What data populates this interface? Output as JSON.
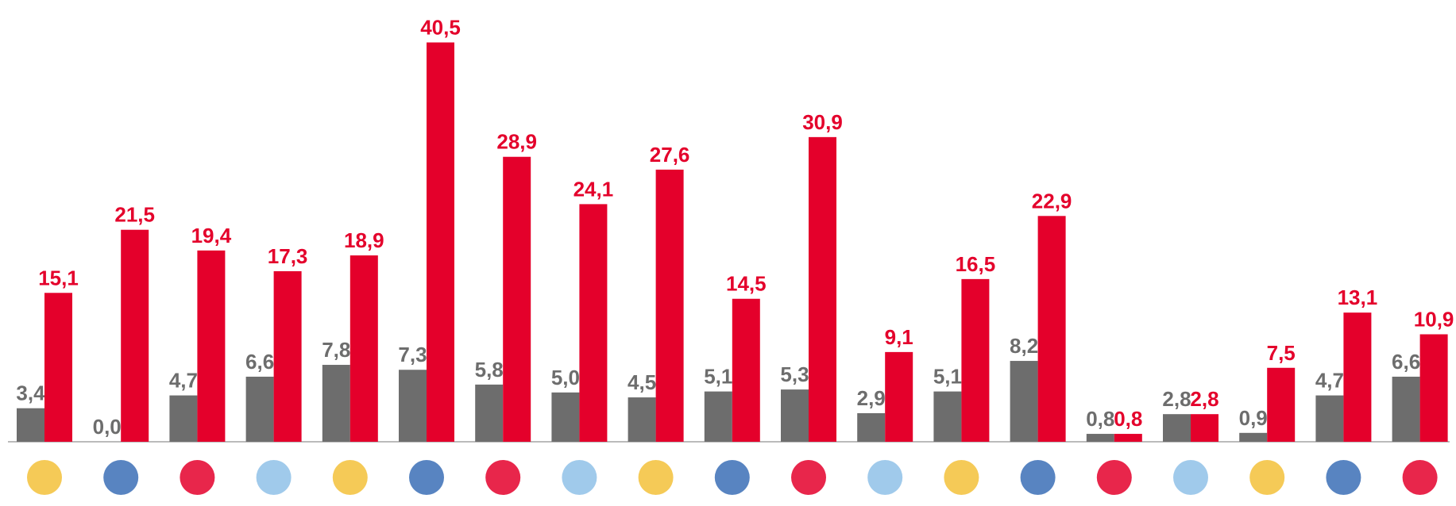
{
  "chart_data": {
    "type": "bar",
    "categories": [
      null,
      null,
      null,
      null,
      null,
      null,
      null,
      null,
      null,
      null,
      null,
      null,
      null,
      null,
      null,
      null,
      null,
      null,
      null
    ],
    "series": [
      {
        "color": "#6d6d6d",
        "values": [
          3.4,
          0.0,
          4.7,
          6.6,
          7.8,
          7.3,
          5.8,
          5.0,
          4.5,
          5.1,
          5.3,
          2.9,
          5.1,
          8.2,
          0.8,
          2.8,
          0.9,
          4.7,
          6.6
        ],
        "value_labels": [
          "3,4",
          "0,0",
          "4,7",
          "6,6",
          "7,8",
          "7,3",
          "5,8",
          "5,0",
          "4,5",
          "5,1",
          "5,3",
          "2,9",
          "5,1",
          "8,2",
          "0,8",
          "2,8",
          "0,9",
          "4,7",
          "6,6"
        ]
      },
      {
        "color": "#e4002b",
        "values": [
          15.1,
          21.5,
          19.4,
          17.3,
          18.9,
          40.5,
          28.9,
          24.1,
          27.6,
          14.5,
          30.9,
          9.1,
          16.5,
          22.9,
          0.8,
          2.8,
          7.5,
          13.1,
          10.9
        ],
        "value_labels": [
          "15,1",
          "21,5",
          "19,4",
          "17,3",
          "18,9",
          "40,5",
          "28,9",
          "24,1",
          "27,6",
          "14,5",
          "30,9",
          "9,1",
          "16,5",
          "22,9",
          "0,8",
          "2,8",
          "7,5",
          "13,1",
          "10,9"
        ]
      }
    ],
    "ylim": [
      0,
      44
    ]
  }
}
